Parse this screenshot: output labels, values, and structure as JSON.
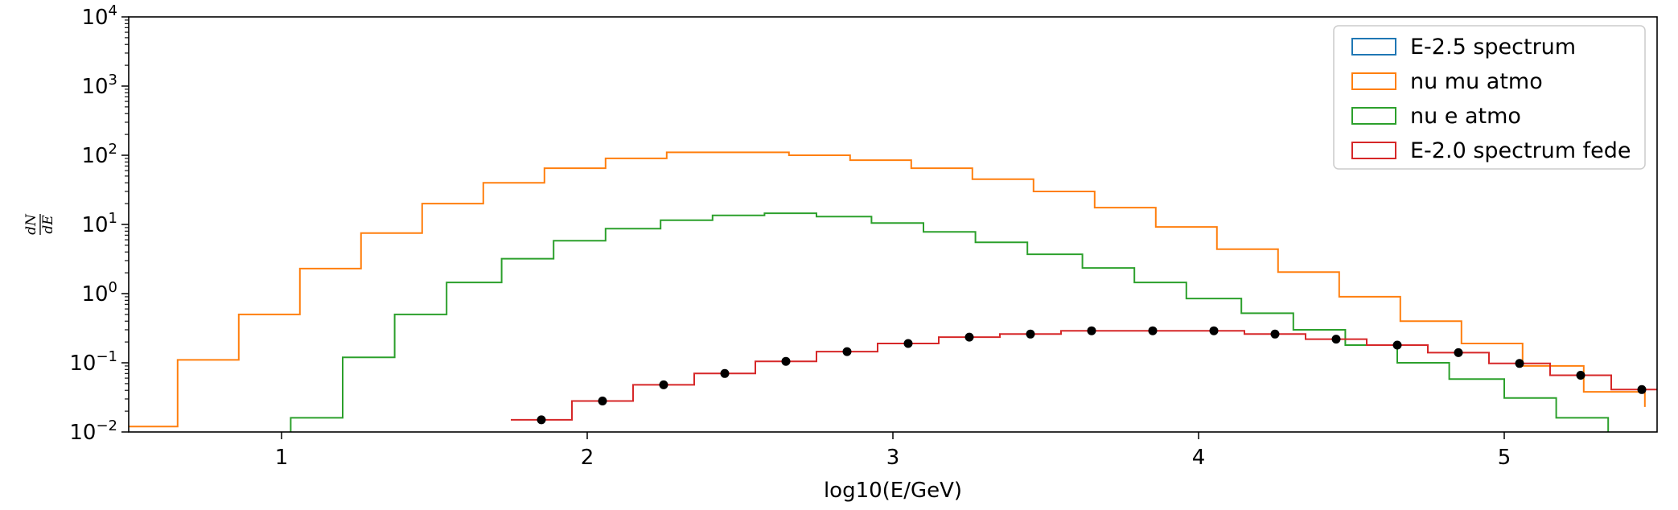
{
  "chart_data": {
    "type": "line",
    "xlabel": "log10(E/GeV)",
    "ylabel": "dN/dE",
    "xlim": [
      0.5,
      5.5
    ],
    "ylim": [
      0.01,
      10000
    ],
    "yscale": "log",
    "grid": false,
    "legend_position": "top-right",
    "x_ticks": [
      {
        "value": 1,
        "label": "1"
      },
      {
        "value": 2,
        "label": "2"
      },
      {
        "value": 3,
        "label": "3"
      },
      {
        "value": 4,
        "label": "4"
      },
      {
        "value": 5,
        "label": "5"
      }
    ],
    "y_ticks": [
      {
        "value": 0.01,
        "base": "10",
        "exp": "−2"
      },
      {
        "value": 0.1,
        "base": "10",
        "exp": "−1"
      },
      {
        "value": 1,
        "base": "10",
        "exp": "0"
      },
      {
        "value": 10,
        "base": "10",
        "exp": "1"
      },
      {
        "value": 100,
        "base": "10",
        "exp": "2"
      },
      {
        "value": 1000,
        "base": "10",
        "exp": "3"
      },
      {
        "value": 10000,
        "base": "10",
        "exp": "4"
      }
    ],
    "series": [
      {
        "name": "E-2.5 spectrum",
        "style": "step",
        "color": "#1f77b4",
        "edges": [],
        "values": []
      },
      {
        "name": "nu mu atmo",
        "style": "step",
        "color": "#ff7f0e",
        "edges": [
          0.46,
          0.66,
          0.86,
          1.06,
          1.26,
          1.46,
          1.66,
          1.86,
          2.06,
          2.26,
          2.46,
          2.66,
          2.86,
          3.06,
          3.26,
          3.46,
          3.66,
          3.86,
          4.06,
          4.26,
          4.46,
          4.66,
          4.86,
          5.06,
          5.26,
          5.46
        ],
        "values": [
          0.012,
          0.11,
          0.5,
          2.3,
          7.5,
          20,
          40,
          65,
          90,
          110,
          110,
          100,
          85,
          65,
          45,
          30,
          17.5,
          9.2,
          4.4,
          2.05,
          0.9,
          0.4,
          0.19,
          0.09,
          0.038,
          0.023
        ]
      },
      {
        "name": "nu e atmo",
        "style": "step",
        "color": "#2ca02c",
        "edges": [
          0.3,
          1.03,
          1.2,
          1.37,
          1.54,
          1.72,
          1.89,
          2.06,
          2.24,
          2.41,
          2.58,
          2.75,
          2.93,
          3.1,
          3.27,
          3.44,
          3.62,
          3.79,
          3.96,
          4.14,
          4.31,
          4.48,
          4.65,
          4.82,
          5.0,
          5.17,
          5.34
        ],
        "values": [
          0.006,
          0.016,
          0.12,
          0.5,
          1.45,
          3.2,
          5.8,
          8.7,
          11.5,
          13.5,
          14.5,
          13,
          10.5,
          7.8,
          5.5,
          3.7,
          2.35,
          1.45,
          0.85,
          0.52,
          0.3,
          0.18,
          0.1,
          0.058,
          0.031,
          0.016,
          0.006
        ]
      },
      {
        "name": "E-2.0 spectrum fede",
        "style": "step",
        "color": "#d62728",
        "edges": [
          1.75,
          1.95,
          2.15,
          2.35,
          2.55,
          2.75,
          2.95,
          3.15,
          3.35,
          3.55,
          3.75,
          3.95,
          4.15,
          4.35,
          4.55,
          4.75,
          4.95,
          5.15,
          5.35,
          5.55
        ],
        "values": [
          0.015,
          0.028,
          0.048,
          0.07,
          0.105,
          0.145,
          0.19,
          0.235,
          0.26,
          0.29,
          0.29,
          0.29,
          0.26,
          0.22,
          0.18,
          0.14,
          0.098,
          0.066,
          0.041
        ]
      }
    ],
    "points": {
      "color": "#000000",
      "x": [
        1.85,
        2.05,
        2.25,
        2.45,
        2.65,
        2.85,
        3.05,
        3.25,
        3.45,
        3.65,
        3.85,
        4.05,
        4.25,
        4.45,
        4.65,
        4.85,
        5.05,
        5.25,
        5.45
      ],
      "y": [
        0.015,
        0.028,
        0.048,
        0.07,
        0.105,
        0.145,
        0.19,
        0.235,
        0.26,
        0.29,
        0.29,
        0.29,
        0.26,
        0.22,
        0.18,
        0.14,
        0.098,
        0.066,
        0.041
      ]
    }
  }
}
